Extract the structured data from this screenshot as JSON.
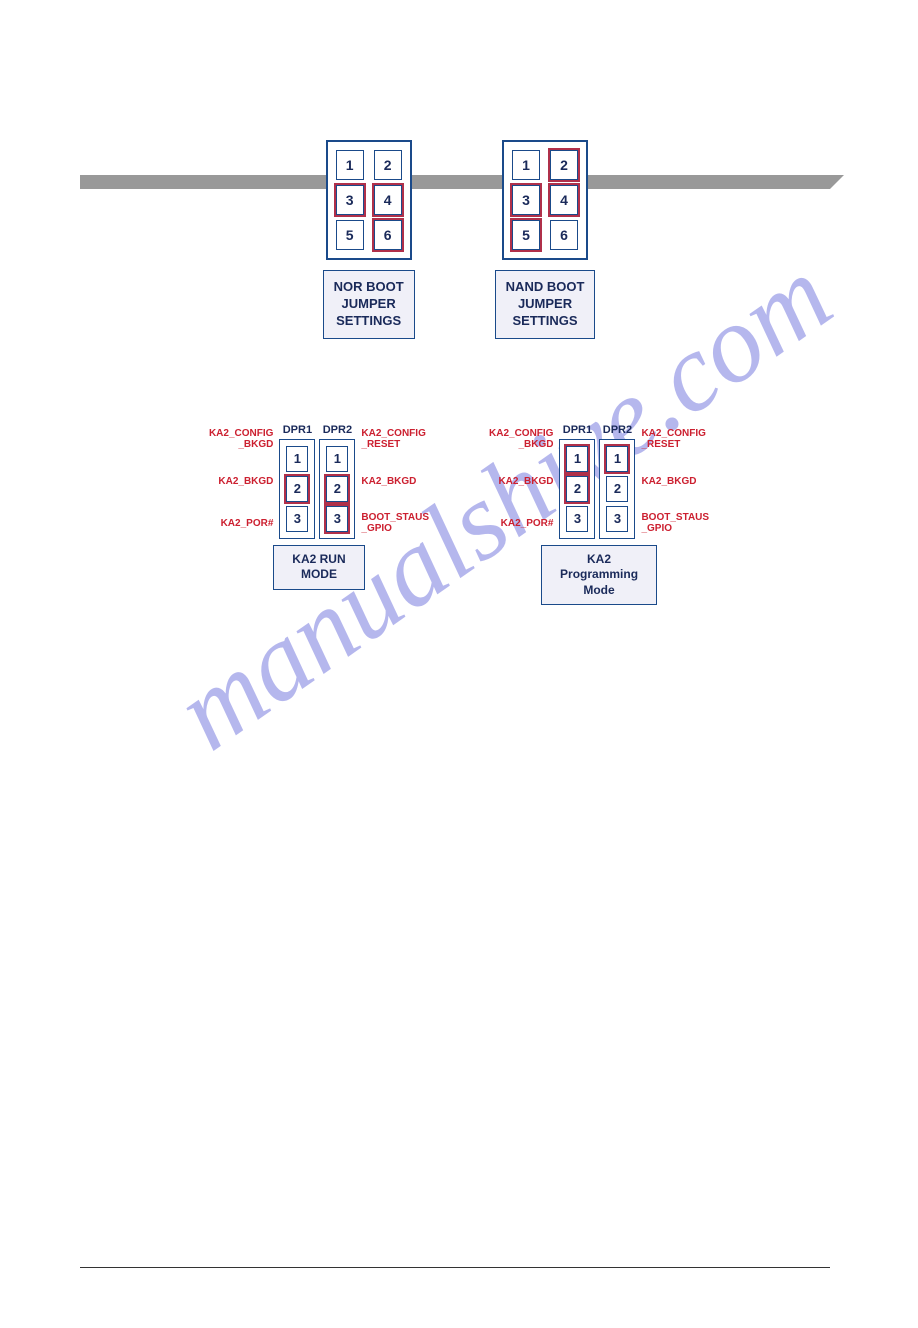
{
  "watermark_text": "manualshive.com",
  "top_bar_color": "#999999",
  "colors": {
    "border": "#1a4a8a",
    "highlight": "#b0304a",
    "label_text": "#cc2030",
    "pin_text": "#1a2a5a",
    "label_bg": "#f0f0f8"
  },
  "boot_jumpers": [
    {
      "id": "nor-boot",
      "label": "NOR BOOT\nJUMPER\nSETTINGS",
      "pins": [
        {
          "n": "1",
          "hl": false
        },
        {
          "n": "2",
          "hl": false
        },
        {
          "n": "3",
          "hl": true
        },
        {
          "n": "4",
          "hl": true
        },
        {
          "n": "5",
          "hl": false
        },
        {
          "n": "6",
          "hl": true
        }
      ]
    },
    {
      "id": "nand-boot",
      "label": "NAND BOOT\nJUMPER\nSETTINGS",
      "pins": [
        {
          "n": "1",
          "hl": false
        },
        {
          "n": "2",
          "hl": true
        },
        {
          "n": "3",
          "hl": true
        },
        {
          "n": "4",
          "hl": true
        },
        {
          "n": "5",
          "hl": true
        },
        {
          "n": "6",
          "hl": false
        }
      ]
    }
  ],
  "dpr_blocks": [
    {
      "id": "ka2-run",
      "label": "KA2 RUN\nMODE",
      "left_labels": [
        "KA2_CONFIG\n_BKGD",
        "KA2_BKGD",
        "KA2_POR#"
      ],
      "right_labels": [
        "KA2_CONFIG\n_RESET",
        "KA2_BKGD",
        "BOOT_STAUS\n_GPIO"
      ],
      "columns": [
        {
          "header": "DPR1",
          "pins": [
            {
              "n": "1",
              "hl": false
            },
            {
              "n": "2",
              "hl": true
            },
            {
              "n": "3",
              "hl": false
            }
          ]
        },
        {
          "header": "DPR2",
          "pins": [
            {
              "n": "1",
              "hl": false
            },
            {
              "n": "2",
              "hl": true
            },
            {
              "n": "3",
              "hl": true
            }
          ]
        }
      ]
    },
    {
      "id": "ka2-prog",
      "label": "KA2\nProgramming\nMode",
      "left_labels": [
        "KA2_CONFIG\n_BKGD",
        "KA2_BKGD",
        "KA2_POR#"
      ],
      "right_labels": [
        "KA2_CONFIG\n_RESET",
        "KA2_BKGD",
        "BOOT_STAUS\n_GPIO"
      ],
      "columns": [
        {
          "header": "DPR1",
          "pins": [
            {
              "n": "1",
              "hl": true
            },
            {
              "n": "2",
              "hl": true
            },
            {
              "n": "3",
              "hl": false
            }
          ]
        },
        {
          "header": "DPR2",
          "pins": [
            {
              "n": "1",
              "hl": true
            },
            {
              "n": "2",
              "hl": false
            },
            {
              "n": "3",
              "hl": false
            }
          ]
        }
      ]
    }
  ]
}
